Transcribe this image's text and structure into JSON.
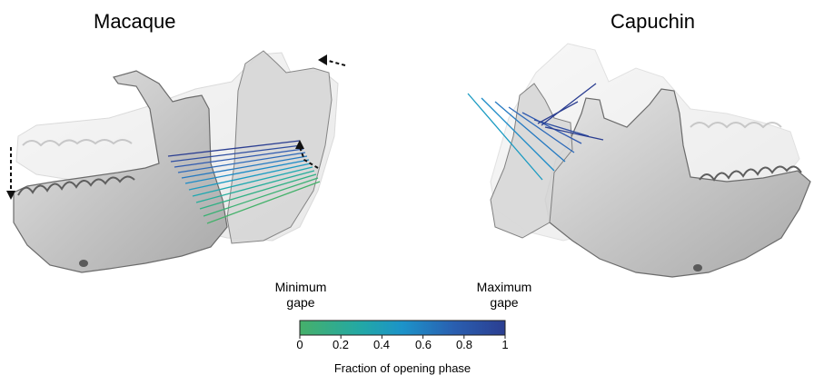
{
  "titles": {
    "left": "Macaque",
    "right": "Capuchin"
  },
  "colorbar": {
    "min_label_line1": "Minimum",
    "min_label_line2": "gape",
    "max_label_line1": "Maximum",
    "max_label_line2": "gape",
    "xlabel": "Fraction of opening phase",
    "ticks": [
      "0",
      "0.2",
      "0.4",
      "0.6",
      "0.8",
      "1"
    ],
    "colors": {
      "start": "#3daf6a",
      "mid": "#1ba3c8",
      "end": "#2b3e91"
    }
  },
  "colors": {
    "bone": "#c9c9c9",
    "bone_dark": "#555555",
    "arrow": "#111111"
  }
}
